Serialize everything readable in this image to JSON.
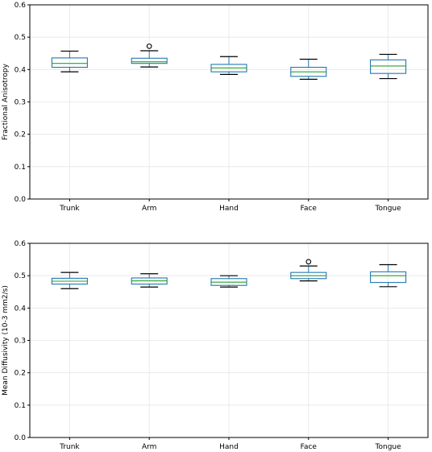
{
  "chart_data": [
    {
      "type": "box",
      "categories": [
        "Trunk",
        "Arm",
        "Hand",
        "Face",
        "Tongue"
      ],
      "ylabel": "Fractional Anisotropy",
      "xlabel": "",
      "title": "",
      "ylim": [
        0.0,
        0.6
      ],
      "yticks": [
        "0.0",
        "0.1",
        "0.2",
        "0.3",
        "0.4",
        "0.5",
        "0.6"
      ],
      "grid": true,
      "boxes": [
        {
          "whisker_low": 0.393,
          "q1": 0.407,
          "median": 0.419,
          "q3": 0.436,
          "whisker_high": 0.457,
          "fliers": []
        },
        {
          "whisker_low": 0.408,
          "q1": 0.419,
          "median": 0.424,
          "q3": 0.435,
          "whisker_high": 0.458,
          "fliers": [
            0.472
          ]
        },
        {
          "whisker_low": 0.385,
          "q1": 0.393,
          "median": 0.405,
          "q3": 0.416,
          "whisker_high": 0.44,
          "fliers": []
        },
        {
          "whisker_low": 0.37,
          "q1": 0.379,
          "median": 0.393,
          "q3": 0.407,
          "whisker_high": 0.432,
          "fliers": []
        },
        {
          "whisker_low": 0.372,
          "q1": 0.388,
          "median": 0.411,
          "q3": 0.43,
          "whisker_high": 0.447,
          "fliers": []
        }
      ]
    },
    {
      "type": "box",
      "categories": [
        "Trunk",
        "Arm",
        "Hand",
        "Face",
        "Tongue"
      ],
      "ylabel": "Mean Diffusivity (10-3 mm2/s)",
      "xlabel": "",
      "title": "",
      "ylim": [
        0.0,
        0.6
      ],
      "yticks": [
        "0.0",
        "0.1",
        "0.2",
        "0.3",
        "0.4",
        "0.5",
        "0.6"
      ],
      "grid": true,
      "boxes": [
        {
          "whisker_low": 0.46,
          "q1": 0.474,
          "median": 0.483,
          "q3": 0.492,
          "whisker_high": 0.51,
          "fliers": []
        },
        {
          "whisker_low": 0.465,
          "q1": 0.474,
          "median": 0.484,
          "q3": 0.493,
          "whisker_high": 0.506,
          "fliers": []
        },
        {
          "whisker_low": 0.465,
          "q1": 0.47,
          "median": 0.48,
          "q3": 0.491,
          "whisker_high": 0.5,
          "fliers": []
        },
        {
          "whisker_low": 0.484,
          "q1": 0.491,
          "median": 0.5,
          "q3": 0.51,
          "whisker_high": 0.53,
          "fliers": [
            0.543
          ]
        },
        {
          "whisker_low": 0.466,
          "q1": 0.479,
          "median": 0.5,
          "q3": 0.512,
          "whisker_high": 0.534,
          "fliers": []
        }
      ]
    }
  ],
  "colors": {
    "box": "#1f77b4",
    "median": "#2ca02c",
    "whisker": "#000000",
    "grid": "#e6e6e6",
    "frame": "#000000"
  }
}
